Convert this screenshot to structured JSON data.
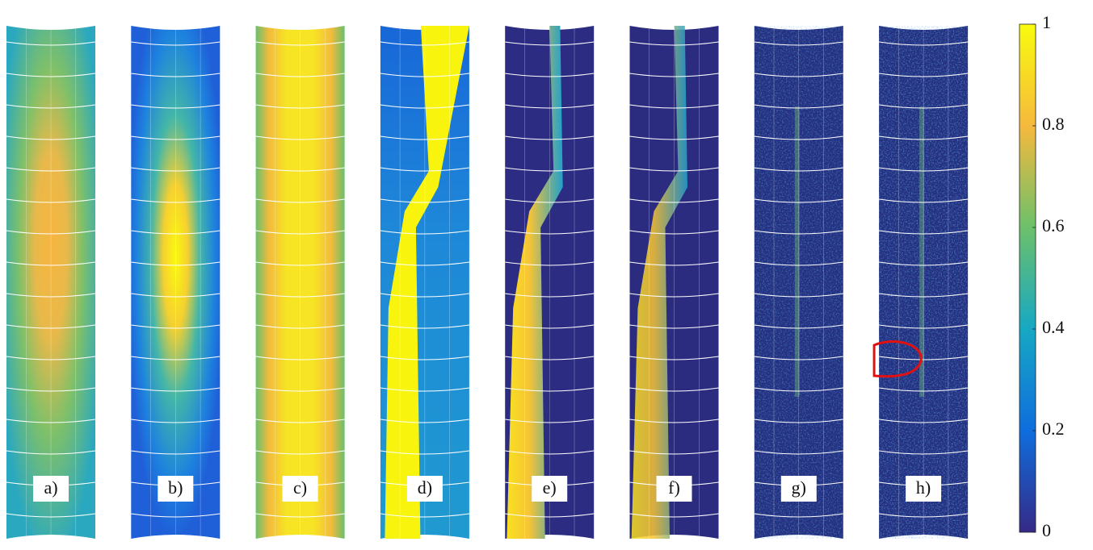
{
  "panels": [
    {
      "label": "a)"
    },
    {
      "label": "b)"
    },
    {
      "label": "c)"
    },
    {
      "label": "d)"
    },
    {
      "label": "e)"
    },
    {
      "label": "f)"
    },
    {
      "label": "g)"
    },
    {
      "label": "h)"
    }
  ],
  "colorbar": {
    "ylim": [
      0,
      1
    ],
    "yticks": [
      0,
      0.2,
      0.4,
      0.6,
      0.8,
      1
    ]
  }
}
